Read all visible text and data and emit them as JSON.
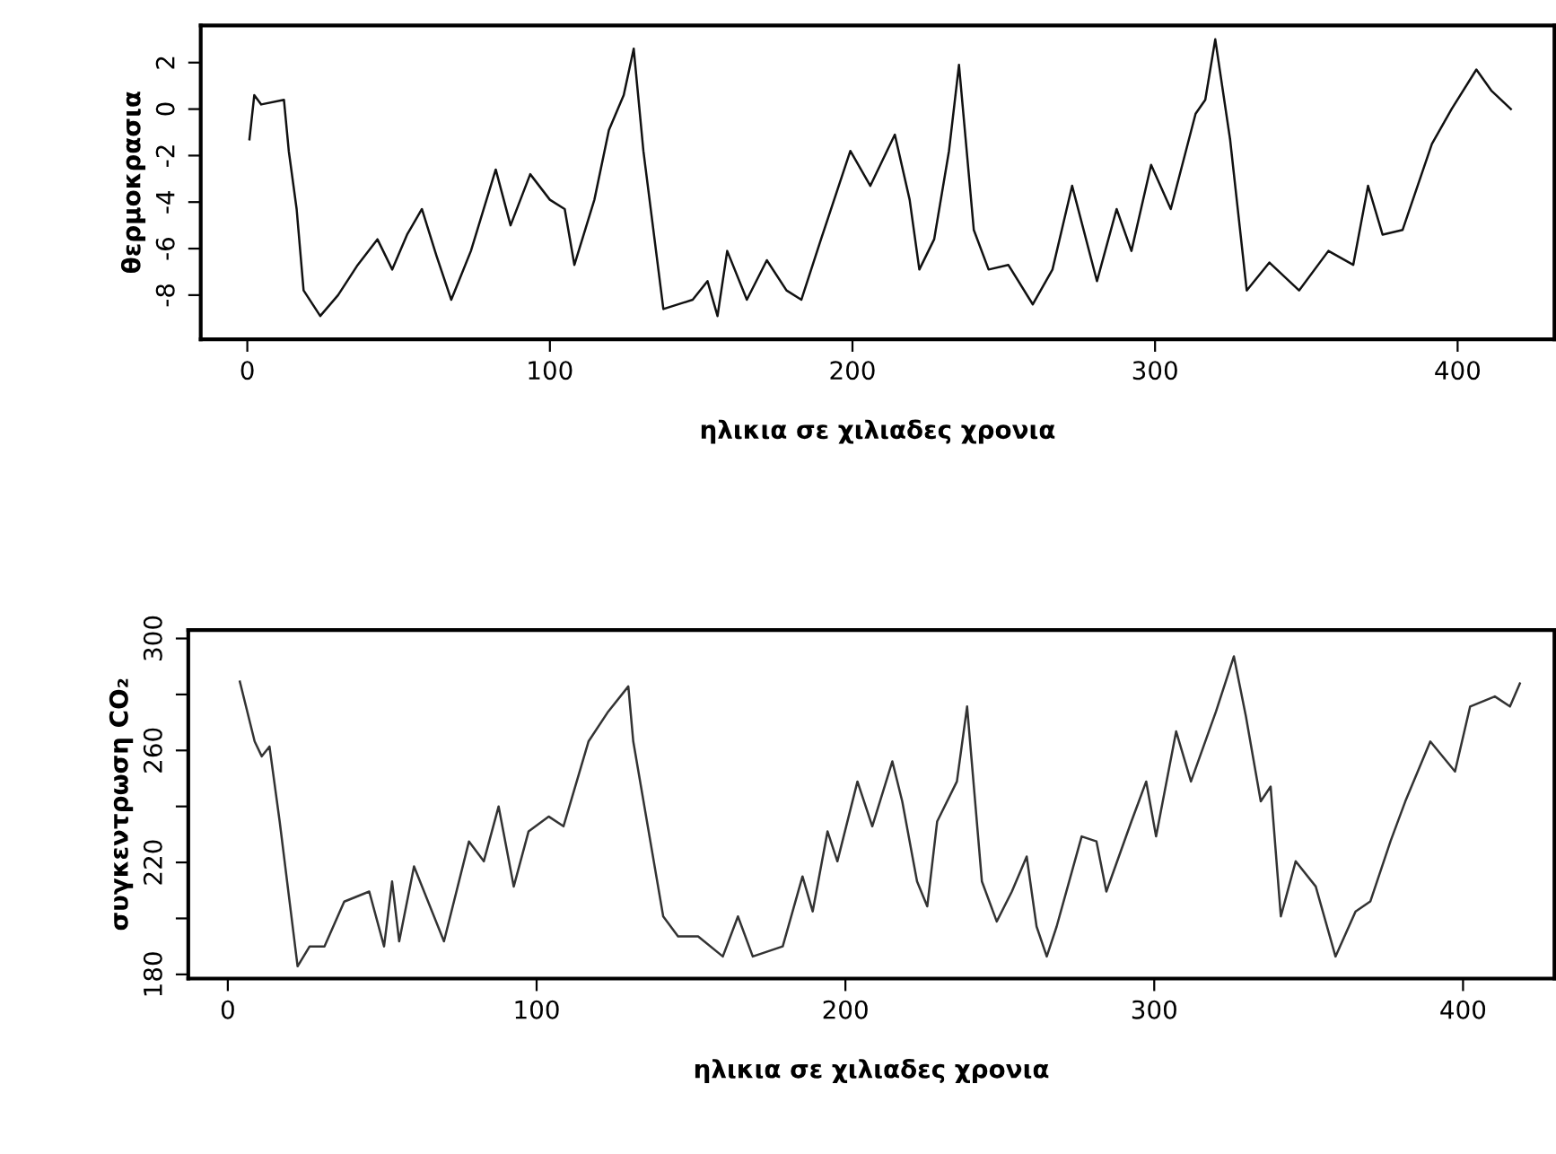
{
  "chart_data": [
    {
      "type": "line",
      "xlabel": "ηλικια σε χιλιαδες χρονια",
      "ylabel": "θερμοκρασια",
      "xlim": [
        -15.4,
        432
      ],
      "xticks": [
        0,
        100,
        200,
        300,
        400
      ],
      "ylim": [
        -9.9,
        3.6
      ],
      "yticks": [
        -8,
        -6,
        -4,
        -2,
        0,
        2
      ],
      "grid": false,
      "marker": "none",
      "line_style": "solid",
      "series": [
        {
          "color": "#111111",
          "x": [
            0.7,
            2.3,
            4.6,
            12.1,
            13.7,
            16.3,
            18.6,
            24.1,
            30.0,
            36.5,
            43.0,
            47.9,
            52.8,
            57.7,
            62.5,
            67.4,
            73.9,
            82.1,
            87.0,
            93.5,
            100,
            104.9,
            108.1,
            114.7,
            119.5,
            124.4,
            127.7,
            130.9,
            137.5,
            147.2,
            152.1,
            155.4,
            158.6,
            165.1,
            171.7,
            178.2,
            183.1,
            189.6,
            199.3,
            205.9,
            214.0,
            218.9,
            222.1,
            227.0,
            231.9,
            235.2,
            240.1,
            245.0,
            251.5,
            259.6,
            266.1,
            272.6,
            280.8,
            287.3,
            292.2,
            298.7,
            305.2,
            313.4,
            316.6,
            319.9,
            324.8,
            330.3,
            337.8,
            347.6,
            357.3,
            365.5,
            370.4,
            375.2,
            381.8,
            391.5,
            398.0,
            406.2,
            411.1,
            417.6
          ],
          "values": [
            -1.3,
            0.6,
            0.2,
            0.4,
            -1.8,
            -4.3,
            -7.8,
            -8.9,
            -8.0,
            -6.7,
            -5.6,
            -6.9,
            -5.4,
            -4.3,
            -6.3,
            -8.2,
            -6.1,
            -2.6,
            -5.0,
            -2.8,
            -3.9,
            -4.3,
            -6.7,
            -3.9,
            -0.9,
            0.6,
            2.6,
            -1.8,
            -8.6,
            -8.2,
            -7.4,
            -8.9,
            -6.1,
            -8.2,
            -6.5,
            -7.8,
            -8.2,
            -5.6,
            -1.8,
            -3.3,
            -1.1,
            -3.9,
            -6.9,
            -5.6,
            -1.8,
            1.9,
            -5.2,
            -6.9,
            -6.7,
            -8.4,
            -6.9,
            -3.3,
            -7.4,
            -4.3,
            -6.1,
            -2.4,
            -4.3,
            -0.2,
            0.4,
            3.0,
            -1.3,
            -7.8,
            -6.6,
            -7.8,
            -6.1,
            -6.7,
            -3.3,
            -5.4,
            -5.2,
            -1.5,
            0.0,
            1.7,
            0.8,
            0.0
          ]
        }
      ]
    },
    {
      "type": "line",
      "xlabel": "ηλικια σε χιλιαδες χρονια",
      "ylabel": "συγκεντρωση CO₂",
      "xlim": [
        -12.8,
        429.6
      ],
      "xticks": [
        0,
        100,
        200,
        300,
        400
      ],
      "ylim": [
        178.5,
        303
      ],
      "yticks": [
        180,
        {
          "value": 200,
          "label": null
        },
        220,
        {
          "value": 240,
          "label": null
        },
        260,
        {
          "value": 280,
          "label": null
        },
        300
      ],
      "grid": false,
      "marker": "none",
      "line_style": "solid",
      "series": [
        {
          "color": "#333333",
          "x": [
            3.9,
            8.7,
            11.0,
            13.5,
            16.8,
            22.6,
            26.5,
            31.3,
            37.7,
            45.8,
            50.6,
            53.2,
            55.5,
            60.3,
            70.0,
            78.1,
            82.9,
            87.7,
            92.6,
            97.4,
            103.9,
            108.7,
            116.8,
            123.2,
            129.7,
            131.3,
            141.0,
            145.8,
            152.3,
            160.3,
            165.2,
            170.0,
            179.7,
            186.1,
            189.4,
            194.2,
            197.4,
            203.9,
            208.7,
            215.2,
            218.4,
            223.2,
            226.5,
            229.7,
            236.1,
            239.4,
            244.2,
            249.0,
            253.9,
            258.7,
            261.9,
            265.2,
            268.4,
            276.5,
            281.3,
            284.5,
            292.6,
            297.4,
            300.6,
            307.1,
            311.9,
            320.0,
            325.8,
            329.7,
            334.5,
            337.7,
            341.0,
            345.8,
            352.3,
            358.7,
            365.2,
            370.0,
            376.5,
            381.3,
            389.4,
            397.4,
            402.3,
            410.3,
            415.2,
            418.4
          ],
          "values": [
            284.6,
            263.2,
            257.9,
            261.4,
            234.6,
            182.9,
            190,
            190,
            206,
            209.6,
            190,
            213.2,
            191.8,
            218.6,
            191.8,
            227.5,
            220.4,
            240,
            211.4,
            231.1,
            236.4,
            232.9,
            263.2,
            273.9,
            282.9,
            263.2,
            200.7,
            193.6,
            193.6,
            186.4,
            200.7,
            186.4,
            190,
            215,
            202.5,
            231.1,
            220.4,
            248.9,
            232.9,
            256.1,
            241.8,
            213.2,
            204.3,
            234.6,
            248.9,
            275.7,
            213.2,
            198.9,
            209.6,
            222.1,
            197.1,
            186.4,
            197.1,
            229.3,
            227.5,
            209.6,
            234.6,
            248.9,
            229.3,
            266.8,
            248.9,
            273.9,
            293.6,
            272.1,
            241.8,
            247.1,
            200.7,
            220.4,
            211.4,
            186.4,
            202.5,
            206.1,
            227.5,
            241.8,
            263.2,
            252.5,
            275.7,
            279.3,
            275.7,
            283.9
          ]
        }
      ]
    }
  ]
}
